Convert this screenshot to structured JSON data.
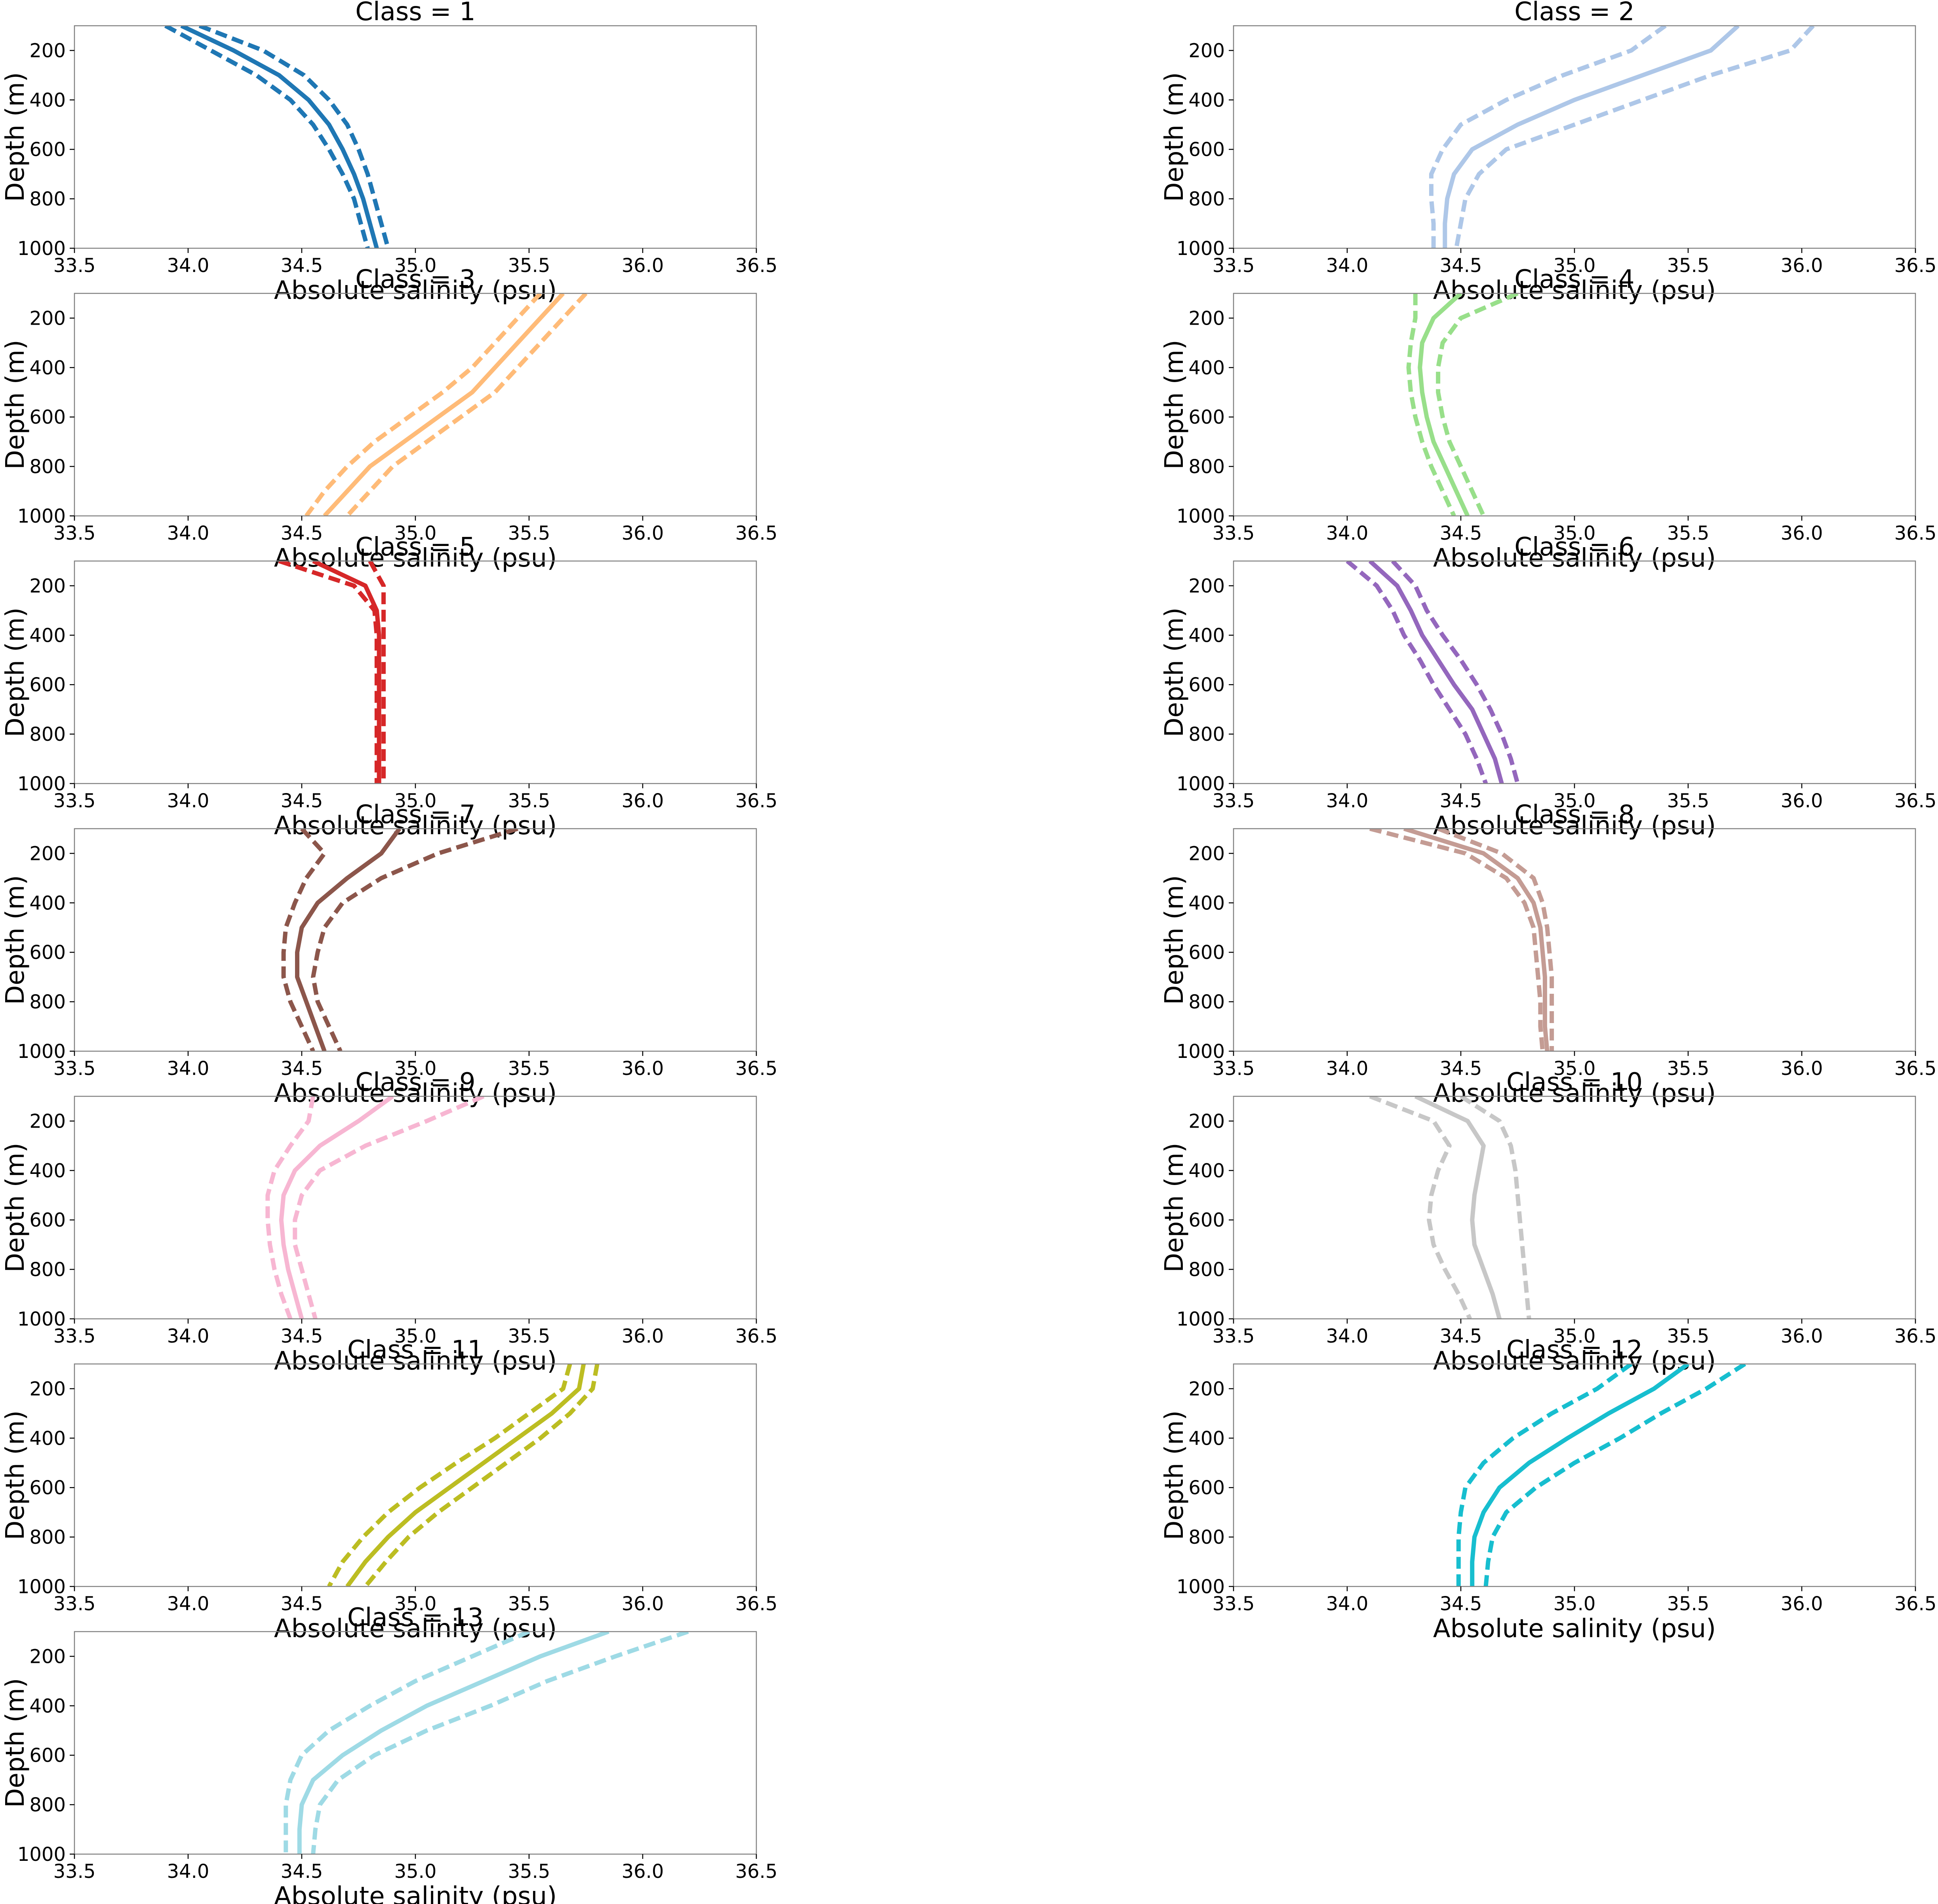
{
  "chart_data": [
    {
      "type": "line",
      "title": "Class = 1",
      "xlabel": "Absolute salinity (psu)",
      "ylabel": "Depth (m)",
      "xlim": [
        33.5,
        36.5
      ],
      "ylim": [
        100,
        1000
      ],
      "y_inverted": true,
      "xticks": [
        "33.5",
        "34.0",
        "34.5",
        "35.0",
        "35.5",
        "36.0",
        "36.5"
      ],
      "yticks": [
        "200",
        "400",
        "600",
        "800",
        "1000"
      ],
      "grid": false,
      "color": "#1f77b4",
      "depth": [
        100,
        200,
        300,
        400,
        500,
        600,
        700,
        800,
        900,
        1000
      ],
      "mean": [
        33.97,
        34.2,
        34.4,
        34.53,
        34.62,
        34.68,
        34.73,
        34.77,
        34.8,
        34.83
      ],
      "lower": [
        33.9,
        34.1,
        34.3,
        34.45,
        34.55,
        34.62,
        34.68,
        34.73,
        34.76,
        34.79
      ],
      "upper": [
        34.05,
        34.33,
        34.51,
        34.62,
        34.7,
        34.75,
        34.79,
        34.82,
        34.85,
        34.88
      ]
    },
    {
      "type": "line",
      "title": "Class = 2",
      "xlabel": "Absolute salinity (psu)",
      "ylabel": "Depth (m)",
      "xlim": [
        33.5,
        36.5
      ],
      "ylim": [
        100,
        1000
      ],
      "y_inverted": true,
      "xticks": [
        "33.5",
        "34.0",
        "34.5",
        "35.0",
        "35.5",
        "36.0",
        "36.5"
      ],
      "yticks": [
        "200",
        "400",
        "600",
        "800",
        "1000"
      ],
      "grid": false,
      "color": "#aec7e8",
      "depth": [
        100,
        200,
        300,
        400,
        500,
        600,
        700,
        800,
        900,
        1000
      ],
      "mean": [
        35.72,
        35.6,
        35.3,
        35.0,
        34.75,
        34.55,
        34.47,
        34.44,
        34.43,
        34.43
      ],
      "lower": [
        35.4,
        35.25,
        34.95,
        34.7,
        34.5,
        34.42,
        34.37,
        34.37,
        34.38,
        34.38
      ],
      "upper": [
        36.05,
        35.95,
        35.6,
        35.3,
        35.0,
        34.7,
        34.58,
        34.52,
        34.5,
        34.48
      ]
    },
    {
      "type": "line",
      "title": "Class = 3",
      "xlabel": "Absolute salinity (psu)",
      "ylabel": "Depth (m)",
      "xlim": [
        33.5,
        36.5
      ],
      "ylim": [
        100,
        1000
      ],
      "y_inverted": true,
      "xticks": [
        "33.5",
        "34.0",
        "34.5",
        "35.0",
        "35.5",
        "36.0",
        "36.5"
      ],
      "yticks": [
        "200",
        "400",
        "600",
        "800",
        "1000"
      ],
      "grid": false,
      "color": "#ffbb78",
      "depth": [
        100,
        200,
        300,
        400,
        500,
        600,
        700,
        800,
        900,
        1000
      ],
      "mean": [
        35.65,
        35.55,
        35.45,
        35.35,
        35.25,
        35.1,
        34.95,
        34.8,
        34.7,
        34.6
      ],
      "lower": [
        35.55,
        35.45,
        35.35,
        35.25,
        35.12,
        34.97,
        34.82,
        34.7,
        34.6,
        34.52
      ],
      "upper": [
        35.75,
        35.65,
        35.55,
        35.45,
        35.35,
        35.2,
        35.05,
        34.9,
        34.8,
        34.7
      ]
    },
    {
      "type": "line",
      "title": "Class = 4",
      "xlabel": "Absolute salinity (psu)",
      "ylabel": "Depth (m)",
      "xlim": [
        33.5,
        36.5
      ],
      "ylim": [
        100,
        1000
      ],
      "y_inverted": true,
      "xticks": [
        "33.5",
        "34.0",
        "34.5",
        "35.0",
        "35.5",
        "36.0",
        "36.5"
      ],
      "yticks": [
        "200",
        "400",
        "600",
        "800",
        "1000"
      ],
      "grid": false,
      "color": "#98df8a",
      "depth": [
        100,
        200,
        300,
        400,
        500,
        600,
        700,
        800,
        900,
        1000
      ],
      "mean": [
        34.5,
        34.38,
        34.33,
        34.32,
        34.33,
        34.35,
        34.38,
        34.43,
        34.48,
        34.53
      ],
      "lower": [
        34.3,
        34.3,
        34.28,
        34.27,
        34.28,
        34.3,
        34.33,
        34.37,
        34.42,
        34.47
      ],
      "upper": [
        34.75,
        34.5,
        34.42,
        34.4,
        34.4,
        34.42,
        34.45,
        34.5,
        34.55,
        34.6
      ]
    },
    {
      "type": "line",
      "title": "Class = 5",
      "xlabel": "Absolute salinity (psu)",
      "ylabel": "Depth (m)",
      "xlim": [
        33.5,
        36.5
      ],
      "ylim": [
        100,
        1000
      ],
      "y_inverted": true,
      "xticks": [
        "33.5",
        "34.0",
        "34.5",
        "35.0",
        "35.5",
        "36.0",
        "36.5"
      ],
      "yticks": [
        "200",
        "400",
        "600",
        "800",
        "1000"
      ],
      "grid": false,
      "color": "#d62728",
      "depth": [
        100,
        200,
        300,
        400,
        500,
        600,
        700,
        800,
        900,
        1000
      ],
      "mean": [
        34.55,
        34.78,
        34.83,
        34.84,
        34.84,
        34.84,
        34.84,
        34.84,
        34.84,
        34.84
      ],
      "lower": [
        34.4,
        34.73,
        34.82,
        34.83,
        34.83,
        34.83,
        34.83,
        34.83,
        34.83,
        34.83
      ],
      "upper": [
        34.8,
        34.86,
        34.86,
        34.86,
        34.86,
        34.86,
        34.86,
        34.86,
        34.86,
        34.86
      ]
    },
    {
      "type": "line",
      "title": "Class = 6",
      "xlabel": "Absolute salinity (psu)",
      "ylabel": "Depth (m)",
      "xlim": [
        33.5,
        36.5
      ],
      "ylim": [
        100,
        1000
      ],
      "y_inverted": true,
      "xticks": [
        "33.5",
        "34.0",
        "34.5",
        "35.0",
        "35.5",
        "36.0",
        "36.5"
      ],
      "yticks": [
        "200",
        "400",
        "600",
        "800",
        "1000"
      ],
      "grid": false,
      "color": "#9467bd",
      "depth": [
        100,
        200,
        300,
        400,
        500,
        600,
        700,
        800,
        900,
        1000
      ],
      "mean": [
        34.1,
        34.22,
        34.28,
        34.33,
        34.4,
        34.47,
        34.55,
        34.6,
        34.65,
        34.68
      ],
      "lower": [
        34.0,
        34.13,
        34.2,
        34.25,
        34.32,
        34.38,
        34.45,
        34.52,
        34.57,
        34.61
      ],
      "upper": [
        34.2,
        34.3,
        34.35,
        34.42,
        34.5,
        34.57,
        34.63,
        34.68,
        34.72,
        34.75
      ]
    },
    {
      "type": "line",
      "title": "Class = 7",
      "xlabel": "Absolute salinity (psu)",
      "ylabel": "Depth (m)",
      "xlim": [
        33.5,
        36.5
      ],
      "ylim": [
        100,
        1000
      ],
      "y_inverted": true,
      "xticks": [
        "33.5",
        "34.0",
        "34.5",
        "35.0",
        "35.5",
        "36.0",
        "36.5"
      ],
      "yticks": [
        "200",
        "400",
        "600",
        "800",
        "1000"
      ],
      "grid": false,
      "color": "#8c564b",
      "depth": [
        100,
        200,
        300,
        400,
        500,
        600,
        700,
        800,
        900,
        1000
      ],
      "mean": [
        34.93,
        34.85,
        34.7,
        34.57,
        34.5,
        34.48,
        34.48,
        34.52,
        34.56,
        34.6
      ],
      "lower": [
        34.5,
        34.6,
        34.52,
        34.47,
        34.43,
        34.42,
        34.42,
        34.45,
        34.5,
        34.55
      ],
      "upper": [
        35.45,
        35.1,
        34.85,
        34.68,
        34.6,
        34.57,
        34.55,
        34.57,
        34.62,
        34.67
      ]
    },
    {
      "type": "line",
      "title": "Class = 8",
      "xlabel": "Absolute salinity (psu)",
      "ylabel": "Depth (m)",
      "xlim": [
        33.5,
        36.5
      ],
      "ylim": [
        100,
        1000
      ],
      "y_inverted": true,
      "xticks": [
        "33.5",
        "34.0",
        "34.5",
        "35.0",
        "35.5",
        "36.0",
        "36.5"
      ],
      "yticks": [
        "200",
        "400",
        "600",
        "800",
        "1000"
      ],
      "grid": false,
      "color": "#c49c94",
      "depth": [
        100,
        200,
        300,
        400,
        500,
        600,
        700,
        800,
        900,
        1000
      ],
      "mean": [
        34.25,
        34.6,
        34.75,
        34.82,
        34.85,
        34.86,
        34.87,
        34.87,
        34.87,
        34.88
      ],
      "lower": [
        34.1,
        34.52,
        34.7,
        34.78,
        34.82,
        34.83,
        34.84,
        34.85,
        34.85,
        34.86
      ],
      "upper": [
        34.4,
        34.68,
        34.82,
        34.86,
        34.88,
        34.89,
        34.9,
        34.9,
        34.9,
        34.9
      ]
    },
    {
      "type": "line",
      "title": "Class = 9",
      "xlabel": "Absolute salinity (psu)",
      "ylabel": "Depth (m)",
      "xlim": [
        33.5,
        36.5
      ],
      "ylim": [
        100,
        1000
      ],
      "y_inverted": true,
      "xticks": [
        "33.5",
        "34.0",
        "34.5",
        "35.0",
        "35.5",
        "36.0",
        "36.5"
      ],
      "yticks": [
        "200",
        "400",
        "600",
        "800",
        "1000"
      ],
      "grid": false,
      "color": "#f7b6d2",
      "depth": [
        100,
        200,
        300,
        400,
        500,
        600,
        700,
        800,
        900,
        1000
      ],
      "mean": [
        34.9,
        34.75,
        34.58,
        34.47,
        34.42,
        34.41,
        34.42,
        34.44,
        34.47,
        34.5
      ],
      "lower": [
        34.55,
        34.53,
        34.45,
        34.38,
        34.35,
        34.35,
        34.36,
        34.38,
        34.41,
        34.45
      ],
      "upper": [
        35.3,
        35.05,
        34.78,
        34.58,
        34.5,
        34.47,
        34.47,
        34.5,
        34.53,
        34.56
      ]
    },
    {
      "type": "line",
      "title": "Class = 10",
      "xlabel": "Absolute salinity (psu)",
      "ylabel": "Depth (m)",
      "xlim": [
        33.5,
        36.5
      ],
      "ylim": [
        100,
        1000
      ],
      "y_inverted": true,
      "xticks": [
        "33.5",
        "34.0",
        "34.5",
        "35.0",
        "35.5",
        "36.0",
        "36.5"
      ],
      "yticks": [
        "200",
        "400",
        "600",
        "800",
        "1000"
      ],
      "grid": false,
      "color": "#c7c7c7",
      "depth": [
        100,
        200,
        300,
        400,
        500,
        600,
        700,
        800,
        900,
        1000
      ],
      "mean": [
        34.3,
        34.53,
        34.6,
        34.58,
        34.56,
        34.55,
        34.56,
        34.6,
        34.64,
        34.67
      ],
      "lower": [
        34.1,
        34.38,
        34.45,
        34.4,
        34.37,
        34.36,
        34.38,
        34.43,
        34.49,
        34.54
      ],
      "upper": [
        34.5,
        34.67,
        34.72,
        34.74,
        34.75,
        34.76,
        34.77,
        34.78,
        34.79,
        34.8
      ]
    },
    {
      "type": "line",
      "title": "Class = 11",
      "xlabel": "Absolute salinity (psu)",
      "ylabel": "Depth (m)",
      "xlim": [
        33.5,
        36.5
      ],
      "ylim": [
        100,
        1000
      ],
      "y_inverted": true,
      "xticks": [
        "33.5",
        "34.0",
        "34.5",
        "35.0",
        "35.5",
        "36.0",
        "36.5"
      ],
      "yticks": [
        "200",
        "400",
        "600",
        "800",
        "1000"
      ],
      "grid": false,
      "color": "#bcbd22",
      "depth": [
        100,
        200,
        300,
        400,
        500,
        600,
        700,
        800,
        900,
        1000
      ],
      "mean": [
        35.74,
        35.72,
        35.6,
        35.45,
        35.3,
        35.15,
        35.0,
        34.88,
        34.78,
        34.7
      ],
      "lower": [
        35.68,
        35.65,
        35.5,
        35.35,
        35.18,
        35.02,
        34.88,
        34.77,
        34.68,
        34.62
      ],
      "upper": [
        35.8,
        35.78,
        35.68,
        35.55,
        35.4,
        35.25,
        35.1,
        34.97,
        34.87,
        34.78
      ]
    },
    {
      "type": "line",
      "title": "Class = 12",
      "xlabel": "Absolute salinity (psu)",
      "ylabel": "Depth (m)",
      "xlim": [
        33.5,
        36.5
      ],
      "ylim": [
        100,
        1000
      ],
      "y_inverted": true,
      "xticks": [
        "33.5",
        "34.0",
        "34.5",
        "35.0",
        "35.5",
        "36.0",
        "36.5"
      ],
      "yticks": [
        "200",
        "400",
        "600",
        "800",
        "1000"
      ],
      "grid": false,
      "color": "#17becf",
      "depth": [
        100,
        200,
        300,
        400,
        500,
        600,
        700,
        800,
        900,
        1000
      ],
      "mean": [
        35.5,
        35.35,
        35.15,
        34.97,
        34.8,
        34.67,
        34.6,
        34.56,
        34.55,
        34.55
      ],
      "lower": [
        35.25,
        35.1,
        34.9,
        34.73,
        34.6,
        34.52,
        34.5,
        34.49,
        34.49,
        34.49
      ],
      "upper": [
        35.75,
        35.58,
        35.38,
        35.2,
        35.0,
        34.83,
        34.7,
        34.64,
        34.62,
        34.61
      ]
    },
    {
      "type": "line",
      "title": "Class = 13",
      "xlabel": "Absolute salinity (psu)",
      "ylabel": "Depth (m)",
      "xlim": [
        33.5,
        36.5
      ],
      "ylim": [
        100,
        1000
      ],
      "y_inverted": true,
      "xticks": [
        "33.5",
        "34.0",
        "34.5",
        "35.0",
        "35.5",
        "36.0",
        "36.5"
      ],
      "yticks": [
        "200",
        "400",
        "600",
        "800",
        "1000"
      ],
      "grid": false,
      "color": "#9edae5",
      "depth": [
        100,
        200,
        300,
        400,
        500,
        600,
        700,
        800,
        900,
        1000
      ],
      "mean": [
        35.85,
        35.55,
        35.3,
        35.05,
        34.85,
        34.68,
        34.55,
        34.5,
        34.49,
        34.49
      ],
      "lower": [
        35.5,
        35.25,
        35.0,
        34.8,
        34.62,
        34.5,
        34.45,
        34.43,
        34.43,
        34.43
      ],
      "upper": [
        36.2,
        35.88,
        35.58,
        35.33,
        35.05,
        34.82,
        34.66,
        34.58,
        34.56,
        34.55
      ]
    }
  ]
}
